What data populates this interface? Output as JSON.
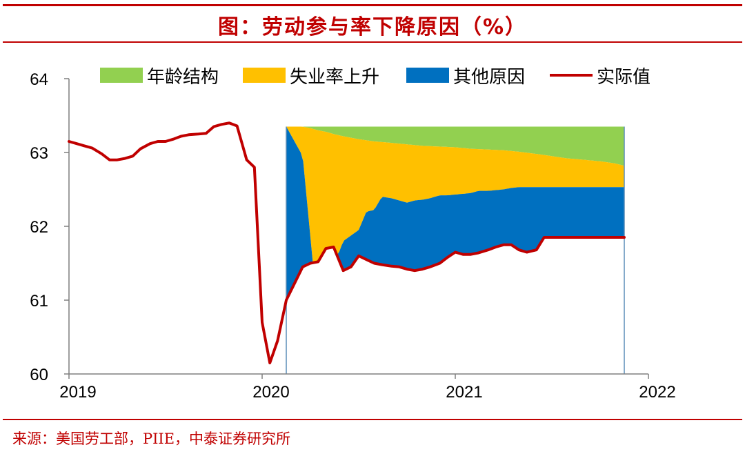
{
  "title": "图：劳动参与率下降原因（%）",
  "source": "来源：美国劳工部，PIIE，中泰证券研究所",
  "chart_data": {
    "type": "area",
    "title": "图：劳动参与率下降原因（%）",
    "xlim": [
      2019.0,
      2022.0
    ],
    "ylim": [
      60,
      64
    ],
    "x_ticks": [
      "2019",
      "2020",
      "2021",
      "2022"
    ],
    "y_ticks": [
      "60",
      "61",
      "62",
      "63",
      "64"
    ],
    "legend_position": "top",
    "legend": [
      "年龄结构",
      "失业率上升",
      "其他原因",
      "实际值"
    ],
    "colors": {
      "age_structure": "#92d050",
      "unemployment_rise": "#ffc000",
      "other_reasons": "#0070c0",
      "actual": "#c00000",
      "guide_line": "#5b8db8"
    },
    "baseline_level": 63.35,
    "stack_start": 2020.125,
    "stack_end": 2021.875,
    "actual_value": {
      "name": "实际值",
      "x": [
        2019.0,
        2019.04,
        2019.08,
        2019.12,
        2019.17,
        2019.21,
        2019.25,
        2019.29,
        2019.33,
        2019.37,
        2019.42,
        2019.46,
        2019.5,
        2019.54,
        2019.58,
        2019.62,
        2019.67,
        2019.71,
        2019.75,
        2019.79,
        2019.83,
        2019.87,
        2019.92,
        2019.96,
        2020.0,
        2020.04,
        2020.08,
        2020.125,
        2020.21,
        2020.25,
        2020.29,
        2020.33,
        2020.37,
        2020.42,
        2020.46,
        2020.5,
        2020.54,
        2020.58,
        2020.62,
        2020.67,
        2020.71,
        2020.75,
        2020.79,
        2020.83,
        2020.87,
        2020.92,
        2020.96,
        2021.0,
        2021.04,
        2021.08,
        2021.12,
        2021.17,
        2021.21,
        2021.25,
        2021.29,
        2021.33,
        2021.37,
        2021.42,
        2021.46,
        2021.5,
        2021.54,
        2021.58,
        2021.62,
        2021.67,
        2021.71,
        2021.75,
        2021.79,
        2021.83,
        2021.875
      ],
      "y": [
        63.15,
        63.12,
        63.09,
        63.06,
        62.98,
        62.9,
        62.9,
        62.92,
        62.95,
        63.05,
        63.12,
        63.15,
        63.15,
        63.18,
        63.22,
        63.24,
        63.25,
        63.26,
        63.35,
        63.38,
        63.4,
        63.36,
        62.9,
        62.8,
        60.7,
        60.15,
        60.45,
        61.0,
        61.45,
        61.5,
        61.52,
        61.7,
        61.72,
        61.4,
        61.45,
        61.6,
        61.55,
        61.5,
        61.48,
        61.46,
        61.45,
        61.42,
        61.4,
        61.42,
        61.45,
        61.5,
        61.58,
        61.65,
        61.62,
        61.62,
        61.64,
        61.68,
        61.72,
        61.75,
        61.75,
        61.68,
        61.65,
        61.68,
        61.85,
        61.85,
        61.85,
        61.85,
        61.85,
        61.85,
        61.85,
        61.85,
        61.85,
        61.85,
        61.85
      ]
    },
    "series": [
      {
        "name": "其他原因",
        "x": [
          2020.125,
          2020.21,
          2020.29,
          2020.33,
          2020.37,
          2020.42,
          2020.5,
          2020.54,
          2020.58,
          2020.62,
          2020.67,
          2020.71,
          2020.75,
          2020.79,
          2020.83,
          2020.87,
          2020.92,
          2020.96,
          2021.0,
          2021.04,
          2021.08,
          2021.12,
          2021.17,
          2021.21,
          2021.25,
          2021.29,
          2021.33,
          2021.37,
          2021.42,
          2021.46,
          2021.5,
          2021.54,
          2021.58,
          2021.62,
          2021.67,
          2021.71,
          2021.75,
          2021.79,
          2021.83,
          2021.875
        ],
        "top": [
          63.35,
          62.95,
          60.75,
          61.05,
          61.45,
          61.8,
          61.95,
          62.2,
          62.22,
          62.4,
          62.38,
          62.35,
          62.32,
          62.35,
          62.36,
          62.38,
          62.42,
          62.42,
          62.43,
          62.44,
          62.45,
          62.48,
          62.48,
          62.49,
          62.5,
          62.52,
          62.53,
          62.53,
          62.53,
          62.53,
          62.53,
          62.53,
          62.53,
          62.53,
          62.53,
          62.53,
          62.53,
          62.53,
          62.53,
          62.53
        ]
      },
      {
        "name": "失业率上升",
        "x": [
          2020.125,
          2020.21,
          2020.25,
          2020.29,
          2020.33,
          2020.37,
          2020.42,
          2020.5,
          2020.58,
          2020.67,
          2020.75,
          2020.83,
          2020.92,
          2021.0,
          2021.08,
          2021.17,
          2021.25,
          2021.33,
          2021.42,
          2021.5,
          2021.58,
          2021.67,
          2021.75,
          2021.83,
          2021.875
        ],
        "top": [
          63.35,
          63.35,
          63.33,
          63.3,
          63.28,
          63.25,
          63.22,
          63.18,
          63.15,
          63.13,
          63.11,
          63.09,
          63.08,
          63.07,
          63.05,
          63.04,
          63.03,
          63.01,
          62.98,
          62.95,
          62.92,
          62.9,
          62.88,
          62.85,
          62.82
        ]
      },
      {
        "name": "年龄结构",
        "top_level": 63.35
      }
    ]
  }
}
